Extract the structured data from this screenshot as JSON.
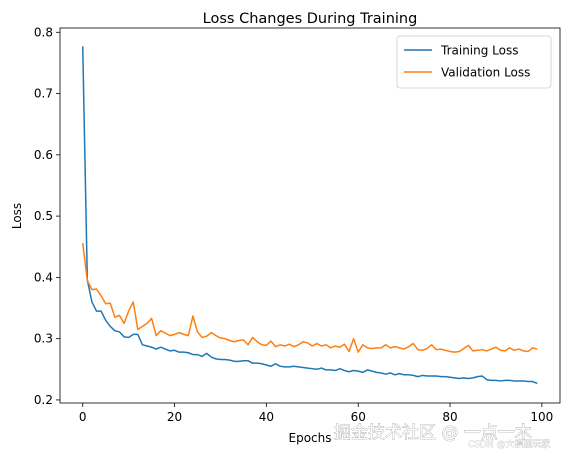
{
  "chart_data": {
    "type": "line",
    "title": "Loss Changes During Training",
    "xlabel": "Epochs",
    "ylabel": "Loss",
    "xlim": [
      -4.95,
      103.95
    ],
    "ylim": [
      0.195,
      0.807
    ],
    "xticks": [
      0,
      20,
      40,
      60,
      80,
      100
    ],
    "yticks": [
      0.2,
      0.3,
      0.4,
      0.5,
      0.6,
      0.7,
      0.8
    ],
    "grid": false,
    "legend_position": "top-right",
    "x": [
      0,
      1,
      2,
      3,
      4,
      5,
      6,
      7,
      8,
      9,
      10,
      11,
      12,
      13,
      14,
      15,
      16,
      17,
      18,
      19,
      20,
      21,
      22,
      23,
      24,
      25,
      26,
      27,
      28,
      29,
      30,
      31,
      32,
      33,
      34,
      35,
      36,
      37,
      38,
      39,
      40,
      41,
      42,
      43,
      44,
      45,
      46,
      47,
      48,
      49,
      50,
      51,
      52,
      53,
      54,
      55,
      56,
      57,
      58,
      59,
      60,
      61,
      62,
      63,
      64,
      65,
      66,
      67,
      68,
      69,
      70,
      71,
      72,
      73,
      74,
      75,
      76,
      77,
      78,
      79,
      80,
      81,
      82,
      83,
      84,
      85,
      86,
      87,
      88,
      89,
      90,
      91,
      92,
      93,
      94,
      95,
      96,
      97,
      98,
      99
    ],
    "series": [
      {
        "name": "Training Loss",
        "color": "#1f77b4",
        "values": [
          0.777,
          0.396,
          0.36,
          0.345,
          0.345,
          0.33,
          0.32,
          0.313,
          0.311,
          0.303,
          0.302,
          0.307,
          0.307,
          0.29,
          0.288,
          0.286,
          0.283,
          0.286,
          0.283,
          0.28,
          0.281,
          0.278,
          0.278,
          0.277,
          0.274,
          0.274,
          0.271,
          0.276,
          0.27,
          0.267,
          0.266,
          0.266,
          0.265,
          0.263,
          0.263,
          0.264,
          0.264,
          0.26,
          0.26,
          0.259,
          0.257,
          0.255,
          0.259,
          0.255,
          0.254,
          0.254,
          0.255,
          0.254,
          0.253,
          0.252,
          0.251,
          0.25,
          0.252,
          0.249,
          0.249,
          0.248,
          0.251,
          0.248,
          0.246,
          0.248,
          0.247,
          0.245,
          0.249,
          0.247,
          0.245,
          0.244,
          0.242,
          0.244,
          0.241,
          0.243,
          0.241,
          0.241,
          0.24,
          0.238,
          0.24,
          0.239,
          0.239,
          0.239,
          0.238,
          0.238,
          0.237,
          0.236,
          0.235,
          0.236,
          0.235,
          0.236,
          0.238,
          0.239,
          0.233,
          0.232,
          0.232,
          0.231,
          0.232,
          0.232,
          0.231,
          0.231,
          0.231,
          0.23,
          0.23,
          0.227
        ]
      },
      {
        "name": "Validation Loss",
        "color": "#ff7f0e",
        "values": [
          0.456,
          0.395,
          0.38,
          0.381,
          0.37,
          0.357,
          0.358,
          0.335,
          0.338,
          0.325,
          0.345,
          0.36,
          0.315,
          0.32,
          0.325,
          0.333,
          0.305,
          0.313,
          0.309,
          0.305,
          0.307,
          0.31,
          0.307,
          0.305,
          0.337,
          0.311,
          0.302,
          0.304,
          0.31,
          0.305,
          0.301,
          0.3,
          0.297,
          0.295,
          0.297,
          0.298,
          0.29,
          0.302,
          0.295,
          0.29,
          0.289,
          0.296,
          0.287,
          0.29,
          0.288,
          0.291,
          0.287,
          0.29,
          0.295,
          0.293,
          0.288,
          0.292,
          0.288,
          0.29,
          0.285,
          0.288,
          0.286,
          0.291,
          0.279,
          0.3,
          0.278,
          0.29,
          0.285,
          0.284,
          0.285,
          0.285,
          0.29,
          0.285,
          0.287,
          0.285,
          0.283,
          0.287,
          0.292,
          0.282,
          0.281,
          0.284,
          0.29,
          0.282,
          0.283,
          0.281,
          0.279,
          0.278,
          0.279,
          0.284,
          0.289,
          0.28,
          0.281,
          0.282,
          0.28,
          0.283,
          0.286,
          0.281,
          0.28,
          0.285,
          0.281,
          0.283,
          0.28,
          0.279,
          0.285,
          0.283
        ]
      }
    ]
  },
  "watermark": {
    "main_text": "掘金技术社区 @ 一点一木",
    "sub_text": "CSDN @大模型玩家"
  }
}
